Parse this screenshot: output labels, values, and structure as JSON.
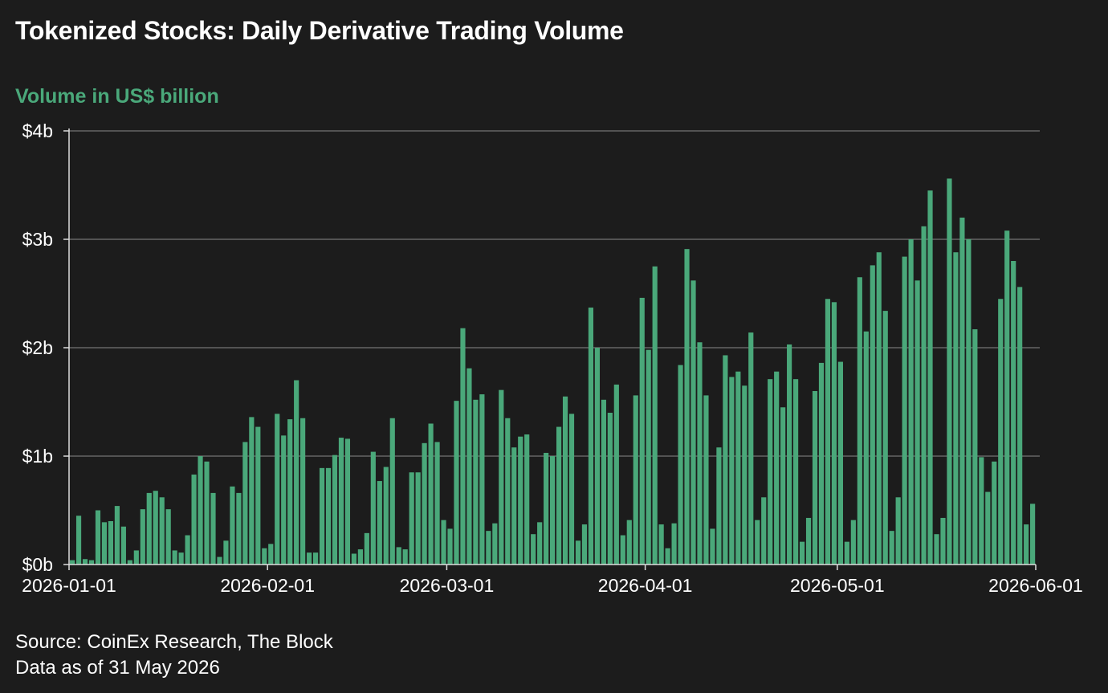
{
  "title": "Tokenized Stocks: Daily Derivative Trading Volume",
  "colors": {
    "background": "#1c1c1c",
    "bar": "#4aa87a",
    "accent_text": "#4aa87a",
    "grid": "#8a8a8a",
    "axis": "#dddddd",
    "text": "#ffffff"
  },
  "source_note": {
    "line1": "Source: CoinEx Research, The Block",
    "line2": "Data as of 31 May 2026"
  },
  "chart_data": {
    "type": "bar",
    "title": "Tokenized Stocks: Daily Derivative Trading Volume",
    "ylabel": "Volume in US$ billion",
    "xlabel": "",
    "ylim": [
      0,
      4
    ],
    "yticks": [
      0,
      1,
      2,
      3,
      4
    ],
    "ytick_labels": [
      "$0b",
      "$1b",
      "$2b",
      "$3b",
      "$4b"
    ],
    "xlim": [
      "2026-01-01",
      "2026-06-01"
    ],
    "xtick_dates": [
      "2026-01-01",
      "2026-02-01",
      "2026-03-01",
      "2026-04-01",
      "2026-05-01",
      "2026-06-01"
    ],
    "xtick_labels": [
      "2026-01-01",
      "2026-02-01",
      "2026-03-01",
      "2026-04-01",
      "2026-05-01",
      "2026-06-01"
    ],
    "grid": "horizontal",
    "legend": "none",
    "series": [
      {
        "start_date": "2026-01-01",
        "interval": "day",
        "values": [
          0.04,
          0.45,
          0.05,
          0.04,
          0.5,
          0.39,
          0.4,
          0.54,
          0.35,
          0.04,
          0.13,
          0.51,
          0.66,
          0.68,
          0.62,
          0.51,
          0.13,
          0.11,
          0.27,
          0.83,
          1.0,
          0.95,
          0.66,
          0.07,
          0.22,
          0.72,
          0.66,
          1.13,
          1.36,
          1.27,
          0.15,
          0.19,
          1.39,
          1.19,
          1.34,
          1.7,
          1.35,
          0.11,
          0.11,
          0.89,
          0.89,
          1.01,
          1.17,
          1.16,
          0.1,
          0.14,
          0.29,
          1.04,
          0.77,
          0.9,
          1.35,
          0.16,
          0.14,
          0.85,
          0.85,
          1.12,
          1.3,
          1.13,
          0.41,
          0.33,
          1.51,
          2.18,
          1.81,
          1.52,
          1.57,
          0.31,
          0.38,
          1.61,
          1.35,
          1.08,
          1.18,
          1.2,
          0.28,
          0.39,
          1.03,
          1.0,
          1.27,
          1.55,
          1.39,
          0.22,
          0.37,
          2.37,
          2.0,
          1.52,
          1.4,
          1.66,
          0.27,
          0.41,
          1.56,
          2.46,
          1.98,
          2.75,
          0.37,
          0.15,
          0.38,
          1.84,
          2.91,
          2.62,
          2.05,
          1.56,
          0.33,
          1.08,
          1.93,
          1.73,
          1.78,
          1.65,
          2.14,
          0.41,
          0.62,
          1.71,
          1.78,
          1.45,
          2.03,
          1.71,
          0.21,
          0.43,
          1.6,
          1.86,
          2.45,
          2.42,
          1.87,
          0.21,
          0.41,
          2.65,
          2.15,
          2.76,
          2.88,
          2.34,
          0.31,
          0.62,
          2.84,
          3.0,
          2.62,
          3.12,
          3.45,
          0.28,
          0.43,
          3.56,
          2.88,
          3.2,
          3.0,
          2.17,
          0.99,
          0.67,
          0.95,
          2.45,
          3.08,
          2.8,
          2.56,
          0.37,
          0.56
        ]
      }
    ]
  }
}
